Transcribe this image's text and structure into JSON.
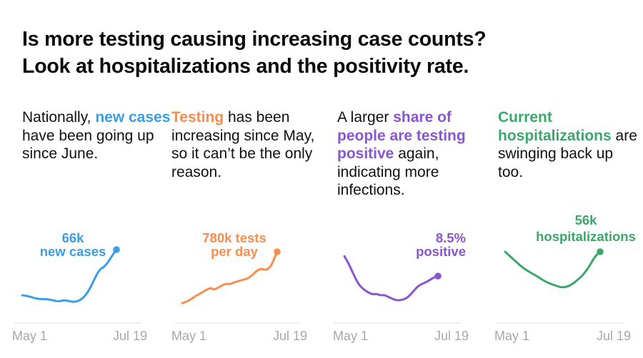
{
  "title_lines": [
    "Is more testing causing increasing case counts?",
    "Look at hospitalizations and the positivity rate."
  ],
  "colors": {
    "cases": "#3a9ee4",
    "tests": "#f88d4f",
    "positivity": "#8a55d0",
    "hospitalizations": "#3aa86a",
    "axis": "#e3e3e3",
    "tick_text": "#a8a8a8"
  },
  "blurbs": [
    {
      "pre": "Nationally, ",
      "highlight": "new cases",
      "post": " have been going up since June.",
      "color_key": "cases"
    },
    {
      "pre": "",
      "highlight": "Testing",
      "post": " has been increasing since May, so it can’t be the only reason.",
      "color_key": "tests"
    },
    {
      "pre": "A larger ",
      "highlight": "share of people are testing positive",
      "post": " again, indicating more infections.",
      "color_key": "positivity"
    },
    {
      "pre": "",
      "highlight": "Current hospitalizations",
      "post": " are swinging back up too.",
      "color_key": "hospitalizations"
    }
  ],
  "chart_data": [
    {
      "type": "line",
      "title": "New cases",
      "color_key": "cases",
      "x_ticks": [
        "May 1",
        "Jul 19"
      ],
      "x_range": [
        "May 1",
        "Jul 19"
      ],
      "y_unit": "thousand cases",
      "ylim": [
        0,
        66
      ],
      "grid": false,
      "annotation": [
        "66k",
        "new cases"
      ],
      "end_label_value": 66,
      "values": [
        25,
        24.6,
        24,
        23.2,
        22.3,
        21.8,
        21.5,
        21.6,
        21.3,
        20.8,
        20.0,
        19.5,
        20.0,
        20.5,
        20.0,
        19.3,
        19.0,
        19.6,
        21.0,
        23.5,
        27,
        32,
        38,
        44,
        48.5,
        50,
        53,
        57.5,
        62,
        66
      ]
    },
    {
      "type": "line",
      "title": "Tests per day",
      "color_key": "tests",
      "x_ticks": [
        "May 1",
        "Jul 19"
      ],
      "x_range": [
        "May 1",
        "Jul 19"
      ],
      "y_unit": "thousand tests per day",
      "ylim": [
        0,
        780
      ],
      "grid": false,
      "annotation": [
        "780k tests",
        "per day"
      ],
      "end_label_value": 780,
      "values": [
        218,
        230,
        245,
        265,
        290,
        310,
        330,
        350,
        370,
        385,
        365,
        380,
        400,
        420,
        430,
        425,
        440,
        450,
        462,
        470,
        480,
        495,
        520,
        555,
        580,
        595,
        580,
        590,
        620,
        700,
        780
      ]
    },
    {
      "type": "line",
      "title": "Positivity rate",
      "color_key": "positivity",
      "x_ticks": [
        "May 1",
        "Jul 19"
      ],
      "x_range": [
        "May 1",
        "Jul 19"
      ],
      "y_unit": "percent positive",
      "ylim": [
        0,
        12
      ],
      "grid": false,
      "annotation": [
        "8.5%",
        "positive"
      ],
      "end_label_value": 8.5,
      "values": [
        12.1,
        11.0,
        9.6,
        8.2,
        7.0,
        6.3,
        5.8,
        5.4,
        5.2,
        5.3,
        5.0,
        5.1,
        4.8,
        4.5,
        4.2,
        4.1,
        4.2,
        4.4,
        4.9,
        5.6,
        6.4,
        6.9,
        7.2,
        7.5,
        7.9,
        8.3,
        8.5
      ]
    },
    {
      "type": "line",
      "title": "Current hospitalizations",
      "color_key": "hospitalizations",
      "x_ticks": [
        "May 1",
        "Jul 19"
      ],
      "x_range": [
        "May 1",
        "Jul 19"
      ],
      "y_unit": "thousand hospitalized",
      "ylim": [
        0,
        56
      ],
      "grid": false,
      "annotation": [
        "56k",
        "hospitalizations"
      ],
      "end_label_value": 56,
      "values": [
        56,
        52,
        48,
        44,
        41,
        38.5,
        36,
        33,
        31,
        29.5,
        28,
        28.3,
        30.5,
        34,
        38,
        44,
        52,
        56
      ]
    }
  ]
}
